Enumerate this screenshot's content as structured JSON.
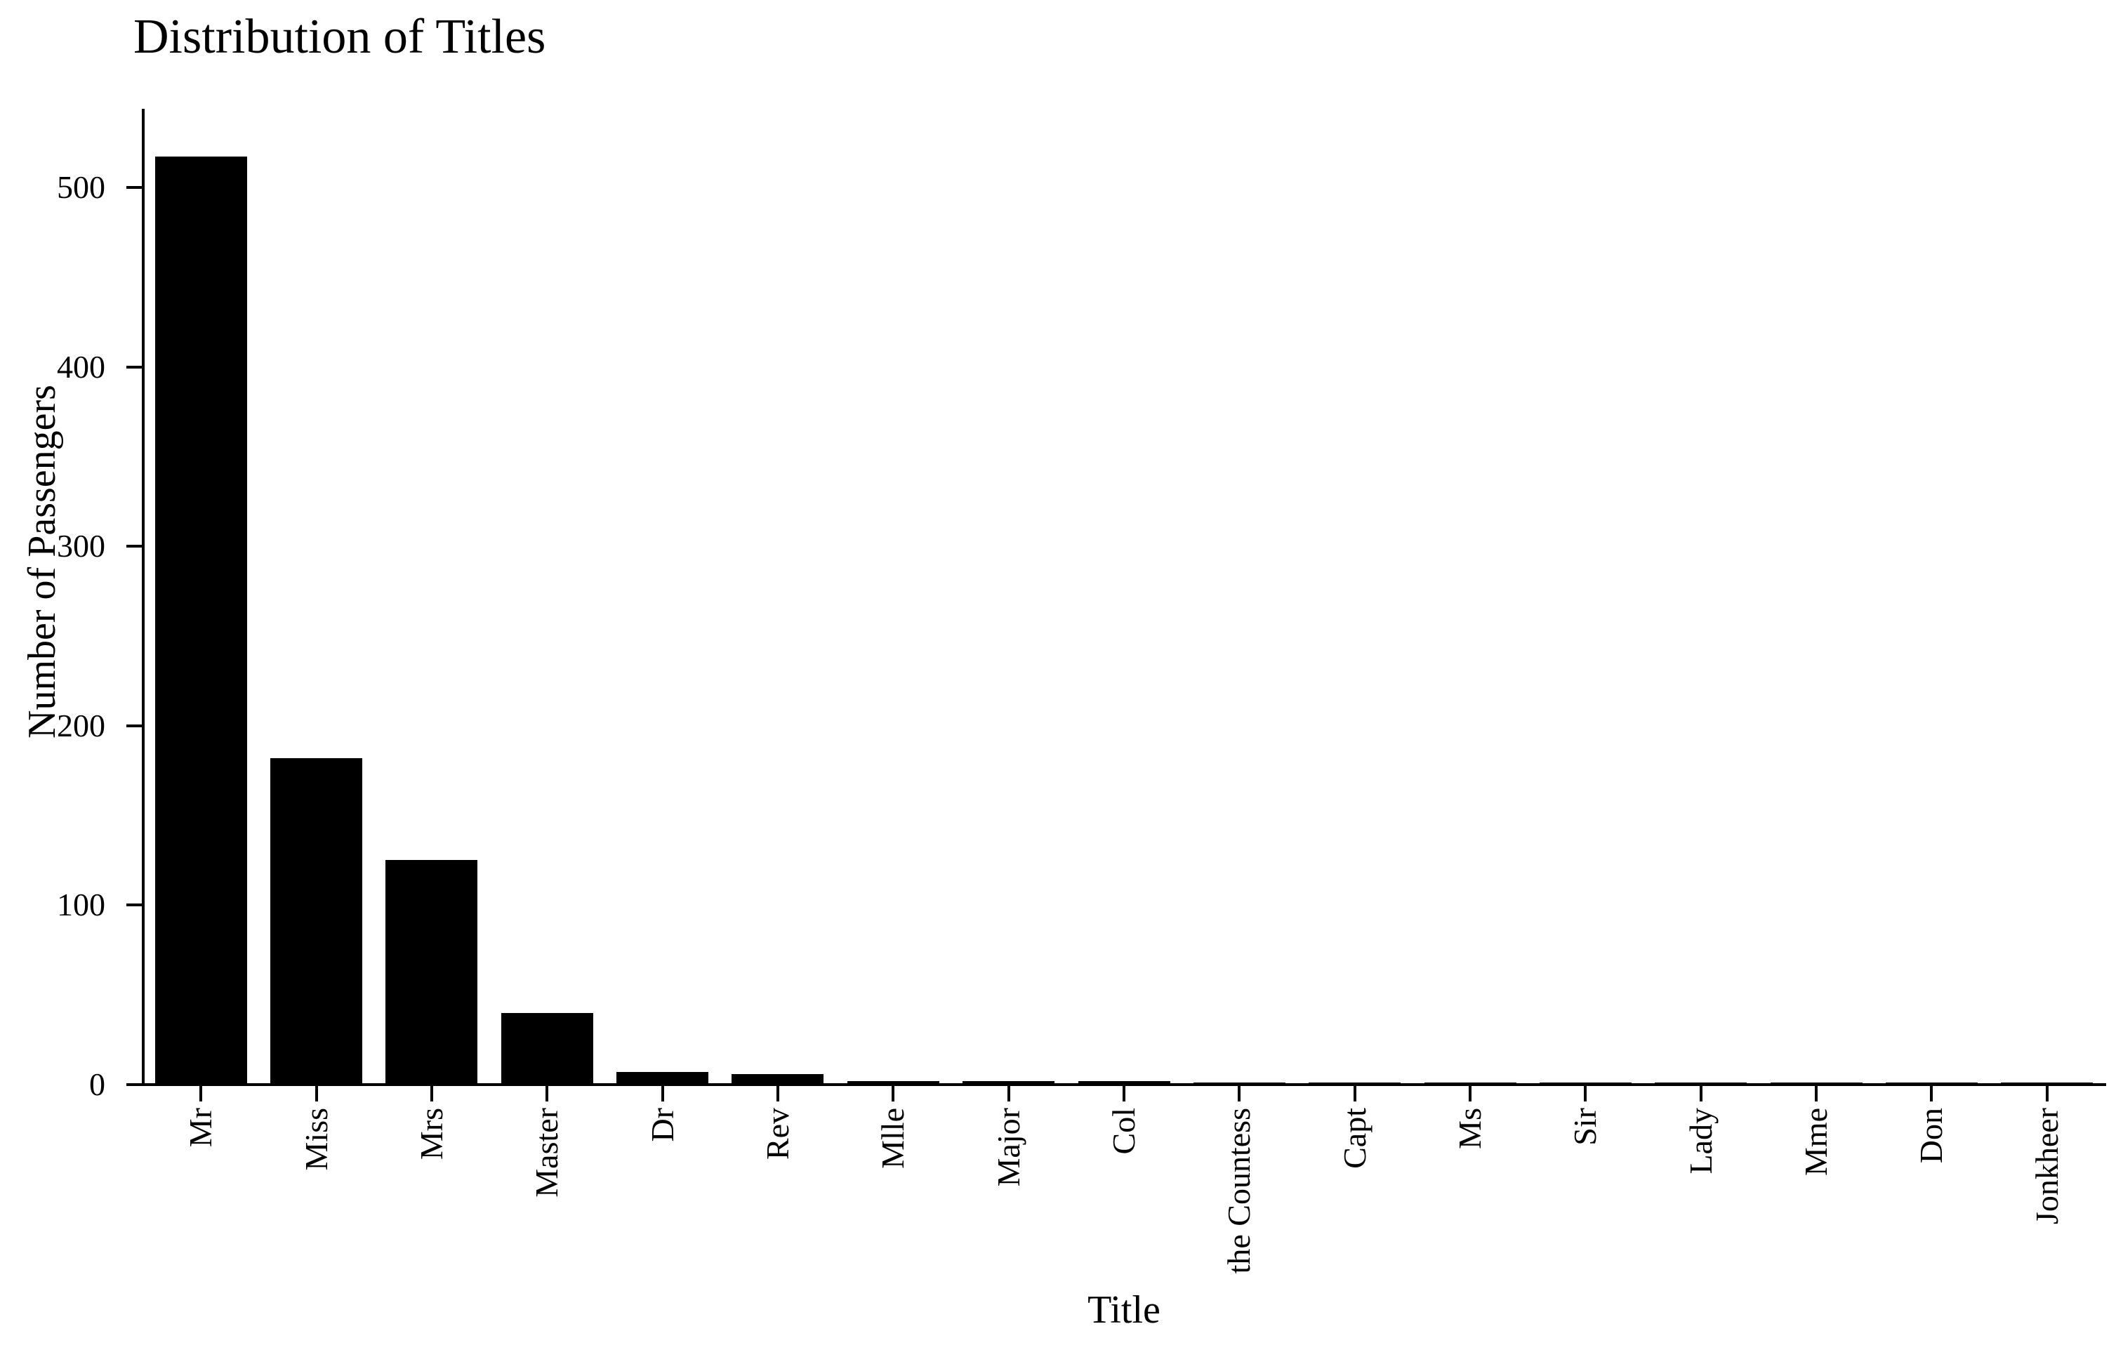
{
  "chart_data": {
    "type": "bar",
    "title": "Distribution of Titles",
    "xlabel": "Title",
    "ylabel": "Number of Passengers",
    "categories": [
      "Mr",
      "Miss",
      "Mrs",
      "Master",
      "Dr",
      "Rev",
      "Mlle",
      "Major",
      "Col",
      "the Countess",
      "Capt",
      "Ms",
      "Sir",
      "Lady",
      "Mme",
      "Don",
      "Jonkheer"
    ],
    "values": [
      517,
      182,
      125,
      40,
      7,
      6,
      2,
      2,
      2,
      1,
      1,
      1,
      1,
      1,
      1,
      1,
      1
    ],
    "yticks": [
      0,
      100,
      200,
      300,
      400,
      500
    ],
    "ylim": [
      0,
      543
    ],
    "x_tick_label_rotation": 90,
    "bar_color": "#000000",
    "axis_color": "#000000",
    "text_color": "#000000",
    "background": "#ffffff",
    "grid": false,
    "legend": null
  }
}
